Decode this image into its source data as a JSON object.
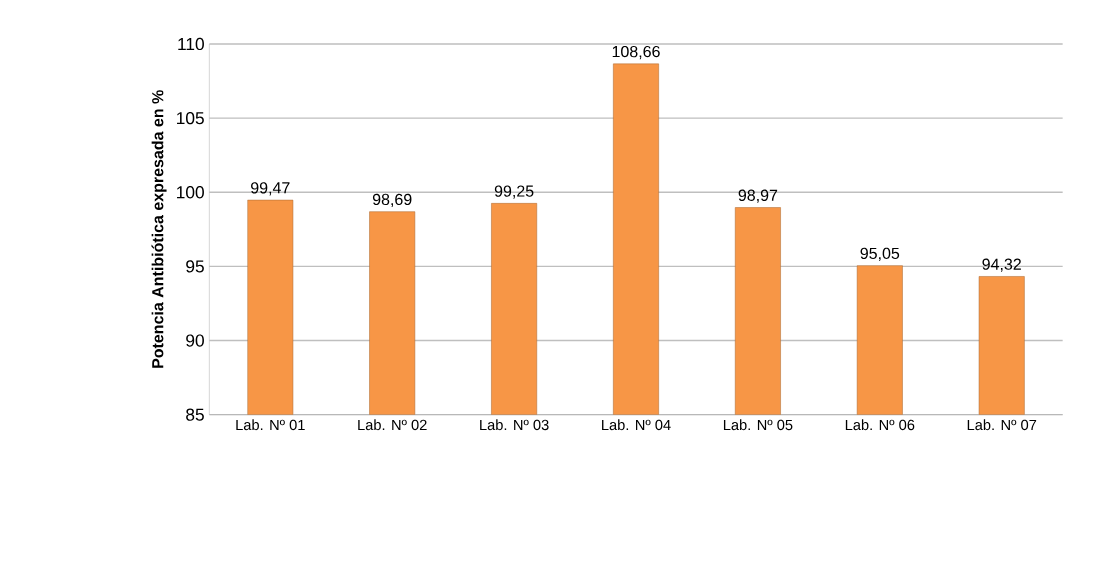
{
  "chart_data": {
    "type": "bar",
    "ylabel": "Potencia Antibiótica expresada en %",
    "categories": [
      "Lab. Nº 01",
      "Lab. Nº 02",
      "Lab. Nº 03",
      "Lab. Nº 04",
      "Lab. Nº 05",
      "Lab. Nº 06",
      "Lab. Nº 07"
    ],
    "values": [
      99.47,
      98.69,
      99.25,
      108.66,
      98.97,
      95.05,
      94.32
    ],
    "value_labels": [
      "99,47",
      "98,69",
      "99,25",
      "108,66",
      "98,97",
      "95,05",
      "94,32"
    ],
    "color": "#f79646",
    "ylim": [
      85,
      110
    ],
    "yticks": [
      85,
      90,
      95,
      100,
      105,
      110
    ],
    "grid": "y"
  }
}
